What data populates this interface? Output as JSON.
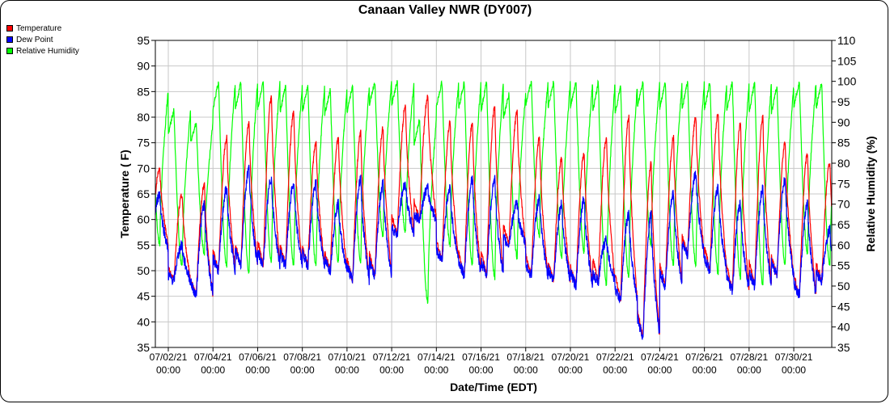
{
  "chart_data": {
    "type": "line",
    "title": "Canaan Valley NWR (DY007)",
    "xlabel": "Date/Time (EDT)",
    "ylabel": "Temperature ( F)",
    "y2label": "Relative Humidity (%)",
    "ylim": [
      35,
      95
    ],
    "y2lim": [
      35,
      110
    ],
    "yticks": [
      35,
      40,
      45,
      50,
      55,
      60,
      65,
      70,
      75,
      80,
      85,
      90,
      95
    ],
    "y2ticks": [
      35,
      40,
      45,
      50,
      55,
      60,
      65,
      70,
      75,
      80,
      85,
      90,
      95,
      100,
      105,
      110
    ],
    "xlim_days": [
      0.42,
      30.7
    ],
    "xticks": [
      {
        "day": 1,
        "line1": "07/02/21",
        "line2": "00:00"
      },
      {
        "day": 3,
        "line1": "07/04/21",
        "line2": "00:00"
      },
      {
        "day": 5,
        "line1": "07/06/21",
        "line2": "00:00"
      },
      {
        "day": 7,
        "line1": "07/08/21",
        "line2": "00:00"
      },
      {
        "day": 9,
        "line1": "07/10/21",
        "line2": "00:00"
      },
      {
        "day": 11,
        "line1": "07/12/21",
        "line2": "00:00"
      },
      {
        "day": 13,
        "line1": "07/14/21",
        "line2": "00:00"
      },
      {
        "day": 15,
        "line1": "07/16/21",
        "line2": "00:00"
      },
      {
        "day": 17,
        "line1": "07/18/21",
        "line2": "00:00"
      },
      {
        "day": 19,
        "line1": "07/20/21",
        "line2": "00:00"
      },
      {
        "day": 21,
        "line1": "07/22/21",
        "line2": "00:00"
      },
      {
        "day": 23,
        "line1": "07/24/21",
        "line2": "00:00"
      },
      {
        "day": 25,
        "line1": "07/26/21",
        "line2": "00:00"
      },
      {
        "day": 27,
        "line1": "07/28/21",
        "line2": "00:00"
      },
      {
        "day": 29,
        "line1": "07/30/21",
        "line2": "00:00"
      }
    ],
    "grid": true,
    "legend_position": "top-left",
    "series": [
      {
        "name": "Temperature",
        "color": "#ff0000",
        "axis": "left",
        "daily_min": [
          55,
          48,
          45,
          50,
          51,
          51,
          51,
          51,
          50,
          48,
          49,
          57,
          60,
          52,
          49,
          49,
          55,
          49,
          48,
          47,
          48,
          44,
          37,
          47,
          53,
          50,
          46,
          47,
          49,
          45,
          48
        ],
        "daily_max": [
          70,
          65,
          67,
          76,
          79,
          84,
          81,
          75,
          76,
          77,
          78,
          82,
          84,
          79,
          79,
          82,
          81,
          76,
          72,
          73,
          76,
          80,
          71,
          76,
          80,
          81,
          79,
          80,
          75,
          73,
          71
        ]
      },
      {
        "name": "Dew Point",
        "color": "#0000ff",
        "axis": "left",
        "daily_min": [
          54,
          48,
          45,
          50,
          51,
          51,
          51,
          51,
          50,
          48,
          49,
          57,
          60,
          52,
          49,
          49,
          55,
          49,
          48,
          47,
          48,
          44,
          37,
          47,
          53,
          50,
          46,
          47,
          49,
          45,
          48
        ],
        "daily_max": [
          65,
          55,
          63,
          66,
          70,
          68,
          67,
          67,
          63,
          68,
          67,
          67,
          66,
          66,
          68,
          68,
          63,
          64,
          63,
          64,
          56,
          61,
          61,
          65,
          69,
          66,
          63,
          66,
          68,
          63,
          58
        ]
      },
      {
        "name": "Relative Humidity",
        "color": "#00ff00",
        "axis": "right",
        "daily_min": [
          60,
          55,
          58,
          55,
          53,
          56,
          55,
          55,
          56,
          56,
          62,
          63,
          46,
          60,
          55,
          52,
          57,
          62,
          57,
          58,
          50,
          52,
          60,
          55,
          55,
          53,
          52,
          50,
          55,
          58,
          55
        ],
        "daily_max": [
          98,
          93,
          90,
          100,
          100,
          100,
          99,
          99,
          98,
          99,
          100,
          100,
          91,
          100,
          100,
          100,
          97,
          100,
          100,
          100,
          100,
          99,
          100,
          100,
          100,
          100,
          100,
          100,
          99,
          100,
          100
        ]
      }
    ]
  }
}
